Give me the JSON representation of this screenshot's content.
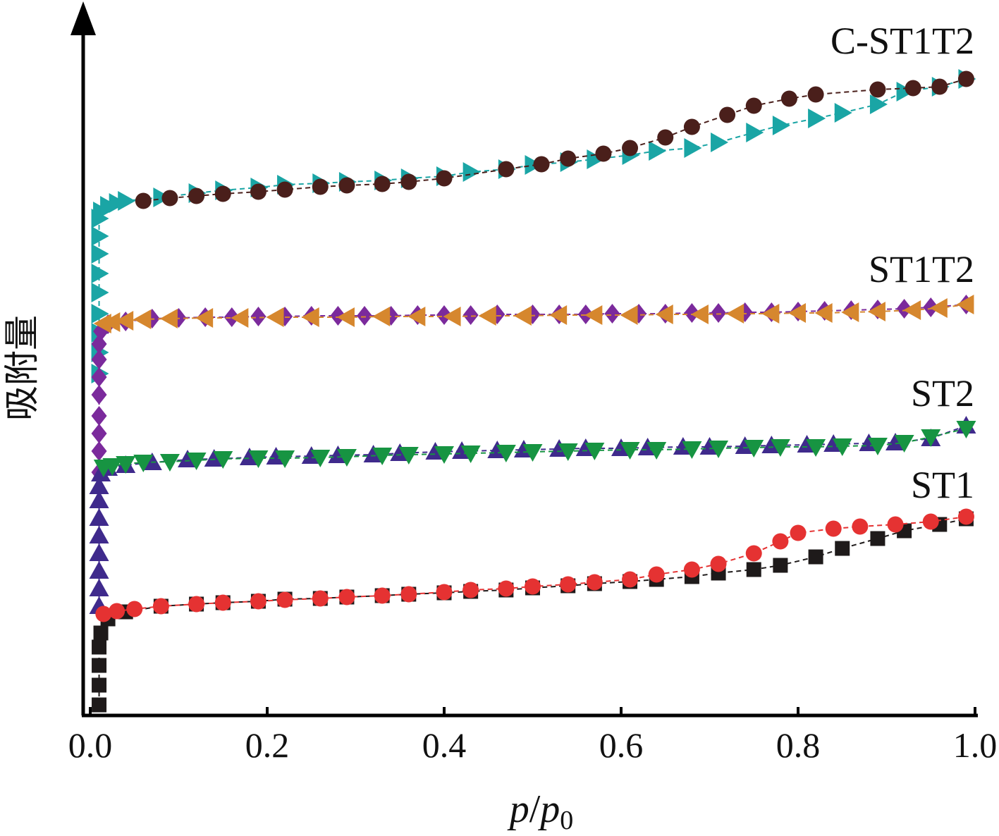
{
  "chart_data": {
    "type": "scatter",
    "xlabel": {
      "main": "p",
      "slash": "/",
      "denom": "p",
      "sub": "0"
    },
    "ylabel": "吸附量",
    "xlim": [
      0.0,
      1.0
    ],
    "x_ticks": [
      "0.0",
      "0.2",
      "0.4",
      "0.6",
      "0.8",
      "1.0"
    ],
    "y_ticks_shown": false,
    "y_units": "relative (curves offset for clarity)",
    "grid": false,
    "legend": "none (curves labeled at right end)",
    "samples": [
      {
        "label": "C-ST1T2",
        "color_ads": "#1aa5a5",
        "color_des": "#4a1f1b",
        "adsorption": {
          "marker": "triangle-right",
          "points": [
            [
              0.01,
              530
            ],
            [
              0.01,
              500
            ],
            [
              0.01,
              472
            ],
            [
              0.01,
              445
            ],
            [
              0.01,
              415
            ],
            [
              0.01,
              388
            ],
            [
              0.01,
              360
            ],
            [
              0.01,
              335
            ],
            [
              0.01,
              310
            ],
            [
              0.012,
              300
            ],
            [
              0.02,
              292
            ],
            [
              0.03,
              288
            ],
            [
              0.04,
              285
            ],
            [
              0.08,
              280
            ],
            [
              0.12,
              274
            ],
            [
              0.15,
              270
            ],
            [
              0.19,
              266
            ],
            [
              0.22,
              262
            ],
            [
              0.26,
              260
            ],
            [
              0.29,
              258
            ],
            [
              0.33,
              256
            ],
            [
              0.36,
              253
            ],
            [
              0.4,
              250
            ],
            [
              0.43,
              244
            ],
            [
              0.47,
              240
            ],
            [
              0.5,
              234
            ],
            [
              0.54,
              230
            ],
            [
              0.57,
              226
            ],
            [
              0.61,
              220
            ],
            [
              0.64,
              214
            ],
            [
              0.68,
              210
            ],
            [
              0.71,
              202
            ],
            [
              0.75,
              188
            ],
            [
              0.78,
              178
            ],
            [
              0.82,
              168
            ],
            [
              0.85,
              160
            ],
            [
              0.89,
              148
            ],
            [
              0.92,
              130
            ],
            [
              0.96,
              123
            ],
            [
              0.99,
              112
            ]
          ]
        },
        "desorption": {
          "marker": "circle",
          "points": [
            [
              0.99,
              112
            ],
            [
              0.96,
              123
            ],
            [
              0.93,
              125
            ],
            [
              0.89,
              127
            ],
            [
              0.82,
              134
            ],
            [
              0.79,
              140
            ],
            [
              0.75,
              150
            ],
            [
              0.72,
              163
            ],
            [
              0.68,
              180
            ],
            [
              0.65,
              195
            ],
            [
              0.61,
              210
            ],
            [
              0.58,
              218
            ],
            [
              0.54,
              225
            ],
            [
              0.51,
              233
            ],
            [
              0.47,
              240
            ],
            [
              0.4,
              253
            ],
            [
              0.36,
              258
            ],
            [
              0.33,
              261
            ],
            [
              0.29,
              263
            ],
            [
              0.26,
              265
            ],
            [
              0.22,
              269
            ],
            [
              0.19,
              272
            ],
            [
              0.15,
              275
            ],
            [
              0.12,
              278
            ],
            [
              0.09,
              281
            ],
            [
              0.06,
              285
            ]
          ]
        }
      },
      {
        "label": "ST1T2",
        "color_ads": "#7b2a9c",
        "color_des": "#d6872e",
        "adsorption": {
          "marker": "diamond",
          "points": [
            [
              0.01,
              670
            ],
            [
              0.01,
              640
            ],
            [
              0.01,
              615
            ],
            [
              0.01,
              590
            ],
            [
              0.01,
              560
            ],
            [
              0.01,
              535
            ],
            [
              0.01,
              510
            ],
            [
              0.01,
              488
            ],
            [
              0.012,
              470
            ],
            [
              0.02,
              460
            ],
            [
              0.04,
              456
            ],
            [
              0.07,
              452
            ],
            [
              0.1,
              451
            ],
            [
              0.13,
              450
            ],
            [
              0.16,
              450
            ],
            [
              0.19,
              449
            ],
            [
              0.22,
              449
            ],
            [
              0.25,
              448
            ],
            [
              0.28,
              448
            ],
            [
              0.31,
              448
            ],
            [
              0.34,
              448
            ],
            [
              0.37,
              447
            ],
            [
              0.4,
              447
            ],
            [
              0.43,
              447
            ],
            [
              0.46,
              446
            ],
            [
              0.5,
              446
            ],
            [
              0.53,
              446
            ],
            [
              0.56,
              446
            ],
            [
              0.59,
              445
            ],
            [
              0.62,
              445
            ],
            [
              0.65,
              445
            ],
            [
              0.68,
              444
            ],
            [
              0.71,
              444
            ],
            [
              0.74,
              443
            ],
            [
              0.77,
              443
            ],
            [
              0.8,
              442
            ],
            [
              0.83,
              441
            ],
            [
              0.86,
              440
            ],
            [
              0.89,
              439
            ],
            [
              0.92,
              438
            ],
            [
              0.95,
              436
            ],
            [
              0.99,
              432
            ]
          ]
        },
        "desorption": {
          "marker": "triangle-left",
          "points": [
            [
              0.99,
              432
            ],
            [
              0.96,
              437
            ],
            [
              0.93,
              440
            ],
            [
              0.89,
              442
            ],
            [
              0.86,
              443
            ],
            [
              0.83,
              444
            ],
            [
              0.8,
              444
            ],
            [
              0.77,
              445
            ],
            [
              0.73,
              445
            ],
            [
              0.69,
              446
            ],
            [
              0.65,
              446
            ],
            [
              0.61,
              447
            ],
            [
              0.57,
              447
            ],
            [
              0.53,
              447
            ],
            [
              0.49,
              448
            ],
            [
              0.45,
              448
            ],
            [
              0.41,
              449
            ],
            [
              0.37,
              449
            ],
            [
              0.33,
              449
            ],
            [
              0.29,
              450
            ],
            [
              0.25,
              450
            ],
            [
              0.21,
              450
            ],
            [
              0.17,
              451
            ],
            [
              0.13,
              451
            ],
            [
              0.09,
              452
            ],
            [
              0.06,
              453
            ],
            [
              0.04,
              455
            ],
            [
              0.025,
              457
            ],
            [
              0.015,
              459
            ]
          ]
        }
      },
      {
        "label": "ST2",
        "color_ads": "#3f2a8c",
        "color_des": "#179442",
        "adsorption": {
          "marker": "triangle-up",
          "points": [
            [
              0.01,
              860
            ],
            [
              0.01,
              835
            ],
            [
              0.01,
              810
            ],
            [
              0.01,
              785
            ],
            [
              0.01,
              760
            ],
            [
              0.01,
              735
            ],
            [
              0.01,
              710
            ],
            [
              0.01,
              690
            ],
            [
              0.012,
              672
            ],
            [
              0.02,
              664
            ],
            [
              0.04,
              660
            ],
            [
              0.07,
              656
            ],
            [
              0.11,
              652
            ],
            [
              0.14,
              651
            ],
            [
              0.18,
              649
            ],
            [
              0.21,
              648
            ],
            [
              0.25,
              647
            ],
            [
              0.28,
              646
            ],
            [
              0.32,
              645
            ],
            [
              0.35,
              643
            ],
            [
              0.39,
              641
            ],
            [
              0.42,
              640
            ],
            [
              0.46,
              639
            ],
            [
              0.49,
              638
            ],
            [
              0.53,
              637
            ],
            [
              0.56,
              636
            ],
            [
              0.6,
              636
            ],
            [
              0.63,
              635
            ],
            [
              0.67,
              634
            ],
            [
              0.7,
              634
            ],
            [
              0.74,
              633
            ],
            [
              0.77,
              632
            ],
            [
              0.81,
              631
            ],
            [
              0.84,
              630
            ],
            [
              0.88,
              629
            ],
            [
              0.91,
              628
            ],
            [
              0.95,
              622
            ],
            [
              0.99,
              604
            ]
          ]
        },
        "desorption": {
          "marker": "triangle-down",
          "points": [
            [
              0.99,
              608
            ],
            [
              0.95,
              620
            ],
            [
              0.92,
              628
            ],
            [
              0.89,
              632
            ],
            [
              0.85,
              633
            ],
            [
              0.82,
              634
            ],
            [
              0.78,
              634
            ],
            [
              0.75,
              635
            ],
            [
              0.71,
              636
            ],
            [
              0.68,
              637
            ],
            [
              0.64,
              638
            ],
            [
              0.61,
              638
            ],
            [
              0.57,
              639
            ],
            [
              0.54,
              640
            ],
            [
              0.5,
              641
            ],
            [
              0.47,
              642
            ],
            [
              0.43,
              643
            ],
            [
              0.4,
              644
            ],
            [
              0.36,
              645
            ],
            [
              0.33,
              646
            ],
            [
              0.29,
              648
            ],
            [
              0.26,
              649
            ],
            [
              0.22,
              650
            ],
            [
              0.19,
              650
            ],
            [
              0.15,
              651
            ],
            [
              0.12,
              653
            ],
            [
              0.09,
              655
            ],
            [
              0.06,
              656
            ],
            [
              0.04,
              658
            ],
            [
              0.025,
              661
            ],
            [
              0.015,
              663
            ]
          ]
        }
      },
      {
        "label": "ST1",
        "color_ads": "#1e1a1a",
        "color_des": "#e53232",
        "adsorption": {
          "marker": "square",
          "points": [
            [
              0.01,
              1000
            ],
            [
              0.01,
              972
            ],
            [
              0.01,
              944
            ],
            [
              0.01,
              918
            ],
            [
              0.012,
              898
            ],
            [
              0.02,
              878
            ],
            [
              0.04,
              868
            ],
            [
              0.08,
              860
            ],
            [
              0.12,
              857
            ],
            [
              0.15,
              855
            ],
            [
              0.19,
              853
            ],
            [
              0.22,
              850
            ],
            [
              0.26,
              849
            ],
            [
              0.29,
              847
            ],
            [
              0.33,
              845
            ],
            [
              0.36,
              843
            ],
            [
              0.4,
              841
            ],
            [
              0.43,
              839
            ],
            [
              0.47,
              837
            ],
            [
              0.5,
              834
            ],
            [
              0.54,
              831
            ],
            [
              0.57,
              828
            ],
            [
              0.61,
              825
            ],
            [
              0.64,
              822
            ],
            [
              0.68,
              818
            ],
            [
              0.71,
              813
            ],
            [
              0.75,
              808
            ],
            [
              0.78,
              802
            ],
            [
              0.82,
              790
            ],
            [
              0.85,
              778
            ],
            [
              0.89,
              764
            ],
            [
              0.92,
              753
            ],
            [
              0.96,
              744
            ],
            [
              0.99,
              736
            ]
          ]
        },
        "desorption": {
          "marker": "circle",
          "points": [
            [
              0.99,
              733
            ],
            [
              0.95,
              740
            ],
            [
              0.91,
              744
            ],
            [
              0.87,
              747
            ],
            [
              0.84,
              750
            ],
            [
              0.8,
              756
            ],
            [
              0.78,
              768
            ],
            [
              0.75,
              785
            ],
            [
              0.71,
              800
            ],
            [
              0.68,
              808
            ],
            [
              0.64,
              815
            ],
            [
              0.61,
              822
            ],
            [
              0.57,
              826
            ],
            [
              0.54,
              829
            ],
            [
              0.5,
              832
            ],
            [
              0.47,
              835
            ],
            [
              0.43,
              837
            ],
            [
              0.4,
              840
            ],
            [
              0.36,
              843
            ],
            [
              0.33,
              845
            ],
            [
              0.29,
              847
            ],
            [
              0.26,
              849
            ],
            [
              0.22,
              851
            ],
            [
              0.19,
              853
            ],
            [
              0.15,
              855
            ],
            [
              0.12,
              857
            ],
            [
              0.08,
              860
            ],
            [
              0.05,
              864
            ],
            [
              0.03,
              867
            ],
            [
              0.015,
              871
            ]
          ]
        }
      }
    ]
  }
}
